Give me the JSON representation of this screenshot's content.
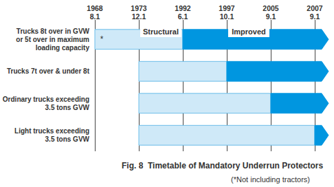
{
  "chart_data": {
    "type": "timeline",
    "title": "Fig. 8  Timetable of Mandatory Underrun Protectors",
    "subtitle": "(*Not including tractors)",
    "categories": [
      "1968\n8.1",
      "1973\n12.1",
      "1992\n6.1",
      "1997\n10.1",
      "2005\n9.1",
      "2007\n9.1"
    ],
    "grid": true,
    "series": [
      {
        "name": "Structural",
        "color": "#cfe9f8"
      },
      {
        "name": "Improved",
        "color": "#0096e0"
      }
    ],
    "rows": [
      {
        "label": "Trucks 8t over in GVW\nor 5t over in maximum\nloading capacity",
        "note": "*",
        "start": "1968\n8.1",
        "change": "1992\n6.1"
      },
      {
        "label": "Trucks 7t over & under 8t",
        "start": "1973\n12.1",
        "change": "1997\n10.1"
      },
      {
        "label": "Ordinary trucks exceeding\n3.5 tons GVW",
        "start": "1973\n12.1",
        "change": "2005\n9.1"
      },
      {
        "label": "Light trucks exceeding\n3.5 tons GVW",
        "start": "1973\n12.1",
        "change": "2007\n9.1"
      }
    ]
  }
}
